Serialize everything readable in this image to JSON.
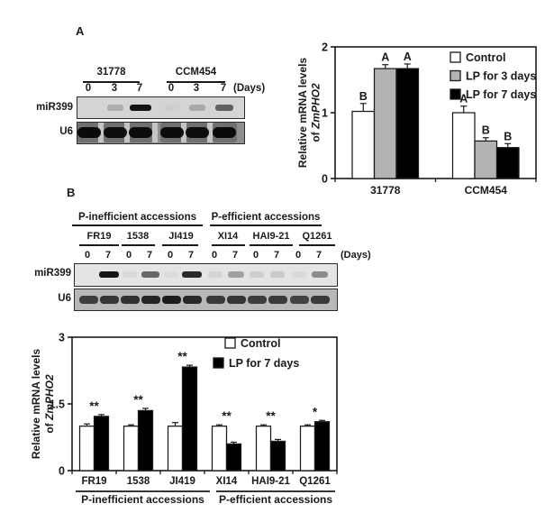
{
  "figure": {
    "background": "#ffffff"
  },
  "panelA": {
    "label": "A",
    "gel": {
      "days_label": "(Days)",
      "row_labels": [
        "miR399",
        "U6"
      ],
      "groups": [
        {
          "name": "31778",
          "lanes": [
            "0",
            "3",
            "7"
          ]
        },
        {
          "name": "CCM454",
          "lanes": [
            "0",
            "3",
            "7"
          ]
        }
      ],
      "mir399_bg": "#d4d4d4",
      "u6_bg": "#8e8e8e",
      "u6_lane_color": "#707070",
      "u6_gap_color": "#c4c4c4",
      "band_color": "#141414",
      "mir399_band_intensities": [
        0,
        0.2,
        1,
        0.03,
        0.22,
        0.6
      ],
      "u6_band_intensities": [
        1,
        0.85,
        0.95,
        0.9,
        0.85,
        1
      ]
    }
  },
  "panelB": {
    "label": "B",
    "gel": {
      "days_label": "(Days)",
      "row_labels": [
        "miR399",
        "U6"
      ],
      "super_groups": [
        {
          "name": "P-inefficient accessions"
        },
        {
          "name": "P-efficient accessions"
        }
      ],
      "groups": [
        {
          "name": "FR19",
          "lanes": [
            "0",
            "7"
          ]
        },
        {
          "name": "1538",
          "lanes": [
            "0",
            "7"
          ]
        },
        {
          "name": "JI419",
          "lanes": [
            "0",
            "7"
          ]
        },
        {
          "name": "XI14",
          "lanes": [
            "0",
            "7"
          ]
        },
        {
          "name": "HAI9-21",
          "lanes": [
            "0",
            "7"
          ]
        },
        {
          "name": "Q1261",
          "lanes": [
            "0",
            "7"
          ]
        }
      ],
      "mir399_bg": "#e4e4e4",
      "u6_bg": "#b8b8b8",
      "band_color": "#141414",
      "mir399_band_intensities": [
        0,
        1,
        0.05,
        0.6,
        0.04,
        0.9,
        0.07,
        0.32,
        0.1,
        0.12,
        0.05,
        0.42
      ],
      "u6_band_intensities": [
        0.6,
        0.7,
        0.75,
        0.9,
        1,
        0.85,
        0.65,
        0.7,
        0.6,
        0.65,
        0.55,
        0.65
      ]
    }
  },
  "chart_data": [
    {
      "id": "chartA",
      "type": "bar",
      "title": "",
      "ylabel_line1": "Relative mRNA levels",
      "ylabel_line2_prefix": "of ",
      "ylabel_line2_italic": "ZmPHO2",
      "ylim": [
        0,
        2
      ],
      "ytick_values": [
        0,
        1,
        2
      ],
      "yticks": [
        "0",
        "1",
        "2"
      ],
      "categories": [
        "31778",
        "CCM454"
      ],
      "series": [
        {
          "name": "Control",
          "fill": "#ffffff",
          "values": [
            1.02,
            1.0
          ],
          "errors": [
            0.12,
            0.1
          ],
          "letters": [
            "B",
            "A"
          ]
        },
        {
          "name": "LP for 3 days",
          "fill": "#b3b3b3",
          "values": [
            1.67,
            0.57
          ],
          "errors": [
            0.06,
            0.05
          ],
          "letters": [
            "A",
            "B"
          ]
        },
        {
          "name": "LP for 7 days",
          "fill": "#000000",
          "values": [
            1.67,
            0.47
          ],
          "errors": [
            0.07,
            0.06
          ],
          "letters": [
            "A",
            "B"
          ]
        }
      ],
      "legend": [
        "Control",
        "LP for 3 days",
        "LP for 7 days"
      ],
      "legend_position": "top-right",
      "grid": false
    },
    {
      "id": "chartB",
      "type": "bar",
      "title": "",
      "ylabel_line1": "Relative mRNA levels",
      "ylabel_line2_prefix": "of ",
      "ylabel_line2_italic": "ZmPHO2",
      "ylim": [
        0,
        3
      ],
      "ytick_values": [
        0,
        1.5,
        3
      ],
      "yticks": [
        "0",
        "1.5",
        "3"
      ],
      "categories": [
        "FR19",
        "1538",
        "JI419",
        "XI14",
        "HAI9-21",
        "Q1261"
      ],
      "group_labels": [
        {
          "text": "P-inefficient accessions",
          "from": 0,
          "to": 2
        },
        {
          "text": "P-efficient accessions",
          "from": 3,
          "to": 5
        }
      ],
      "series": [
        {
          "name": "Control",
          "fill": "#ffffff",
          "values": [
            1,
            1,
            1,
            1,
            1,
            1
          ],
          "errors": [
            0.05,
            0.03,
            0.08,
            0.03,
            0.03,
            0.03
          ]
        },
        {
          "name": "LP for 7 days",
          "fill": "#000000",
          "values": [
            1.22,
            1.35,
            2.33,
            0.6,
            0.66,
            1.1
          ],
          "errors": [
            0.04,
            0.05,
            0.04,
            0.04,
            0.04,
            0.03
          ]
        }
      ],
      "significance": [
        "**",
        "**",
        "**",
        "**",
        "**",
        "*"
      ],
      "legend": [
        "Control",
        "LP for 7 days"
      ],
      "legend_position": "top-right",
      "grid": false
    }
  ]
}
